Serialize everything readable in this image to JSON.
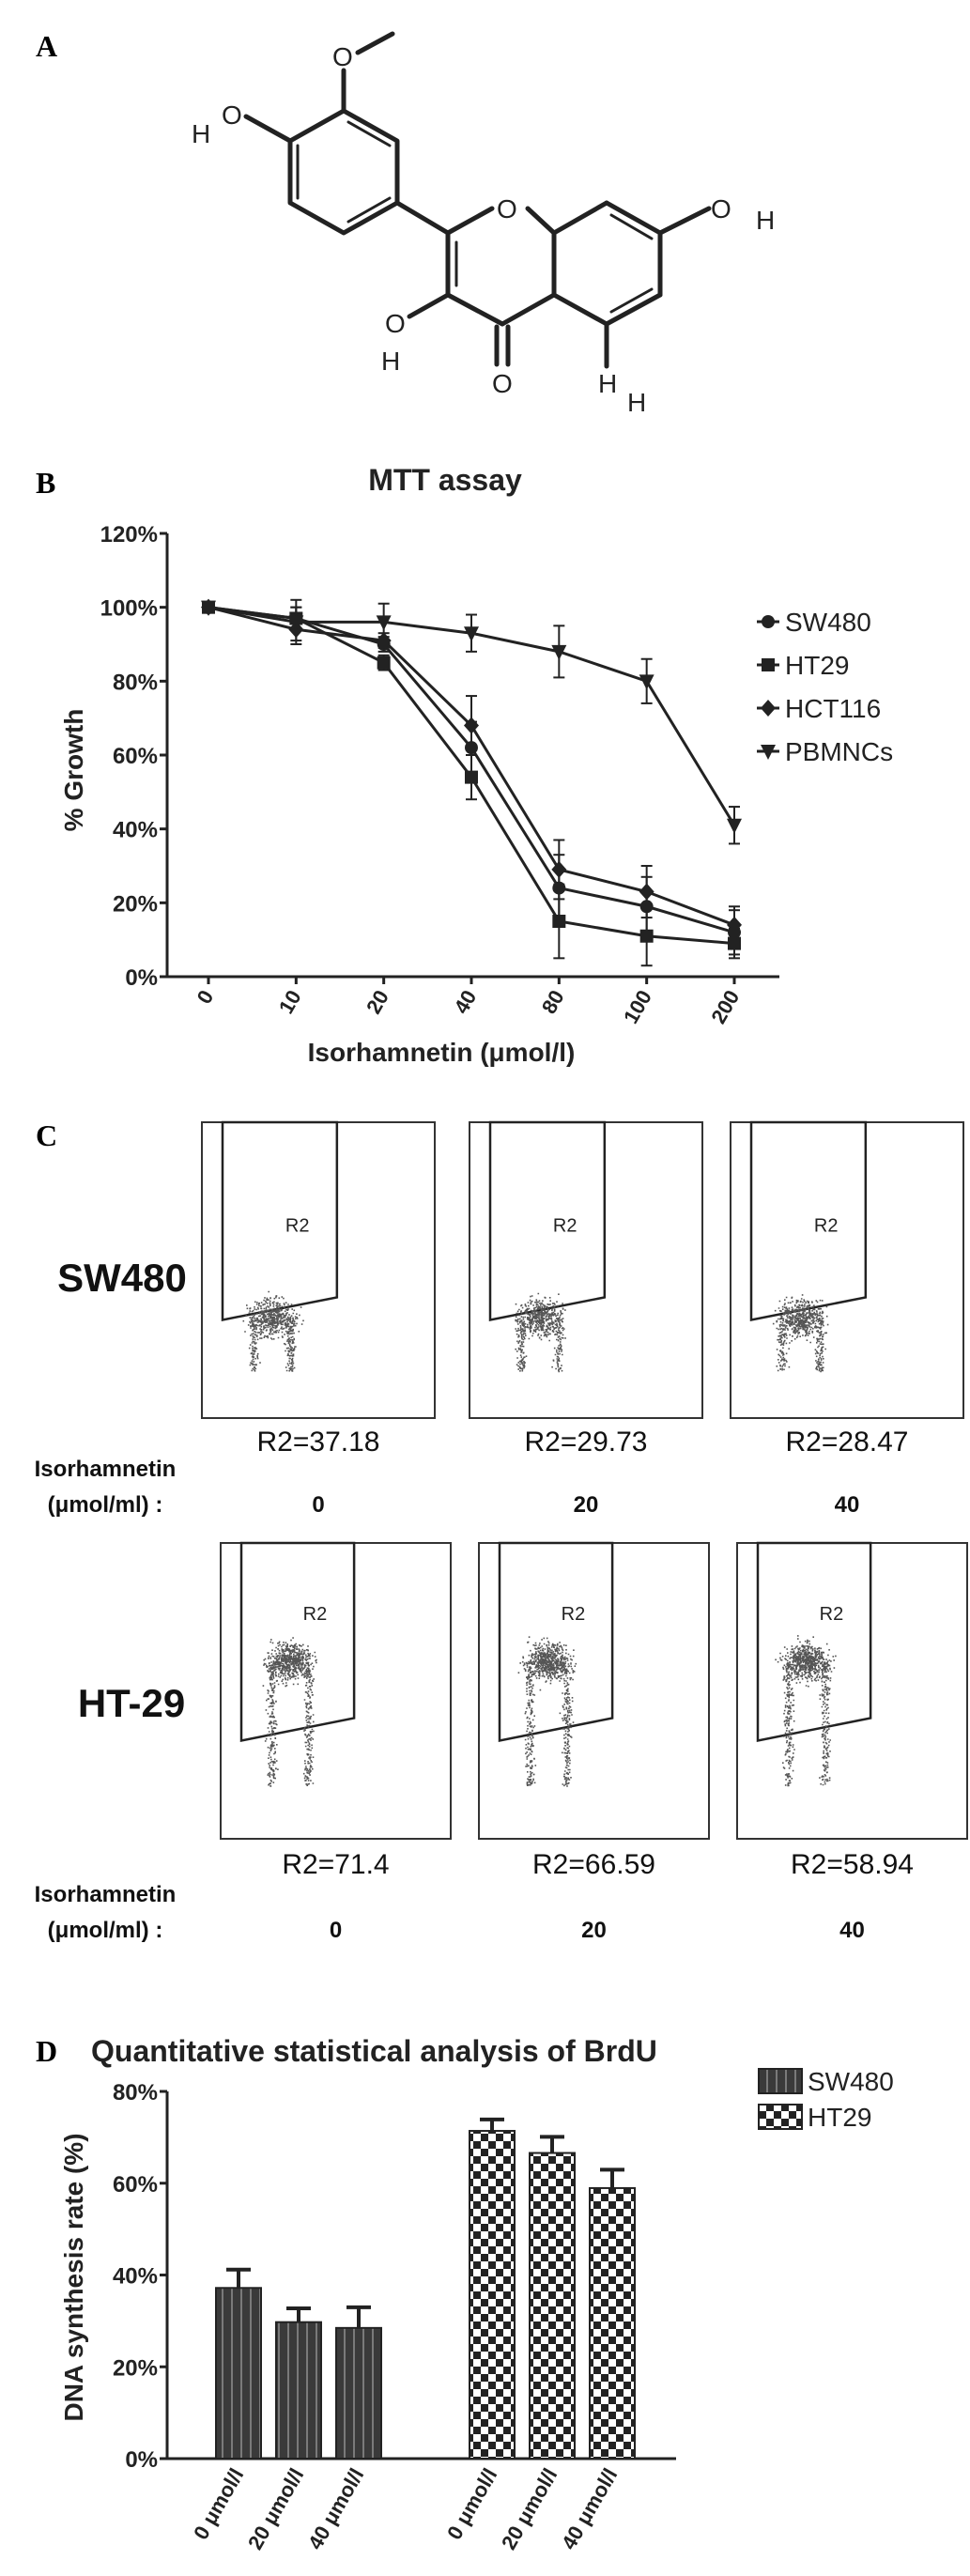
{
  "panels": {
    "a": {
      "letter": "A"
    },
    "b": {
      "letter": "B"
    },
    "c": {
      "letter": "C"
    },
    "d": {
      "letter": "D"
    }
  },
  "molecule": {
    "atoms": [
      "O",
      "H",
      "O",
      "O",
      "H",
      "O",
      "H",
      "O",
      "O",
      "H"
    ]
  },
  "chart_data": [
    {
      "type": "line",
      "panel": "B",
      "title": "MTT assay",
      "xlabel": "Isorhamnetin (μmol/l)",
      "ylabel": "% Growth",
      "categories": [
        "0",
        "10",
        "20",
        "40",
        "80",
        "100",
        "200"
      ],
      "y_ticks": [
        "0%",
        "20%",
        "40%",
        "60%",
        "80%",
        "100%",
        "120%"
      ],
      "ylim": [
        0,
        120
      ],
      "legend_position": "right",
      "series": [
        {
          "name": "SW480",
          "marker": "circle",
          "values": [
            100,
            97,
            90,
            62,
            24,
            19,
            12
          ],
          "errors": [
            1,
            3,
            2,
            7,
            9,
            8,
            6
          ]
        },
        {
          "name": "HT29",
          "marker": "square",
          "values": [
            100,
            97,
            85,
            54,
            15,
            11,
            9
          ],
          "errors": [
            1,
            3,
            2,
            6,
            10,
            8,
            4
          ]
        },
        {
          "name": "HCT116",
          "marker": "diamond",
          "values": [
            100,
            94,
            91,
            68,
            29,
            23,
            14
          ],
          "errors": [
            1,
            3,
            2,
            8,
            8,
            7,
            5
          ]
        },
        {
          "name": "PBMNCs",
          "marker": "triangle-down",
          "values": [
            100,
            96,
            96,
            93,
            88,
            80,
            41
          ],
          "errors": [
            1,
            6,
            5,
            5,
            7,
            6,
            5
          ]
        }
      ]
    },
    {
      "type": "bar",
      "panel": "D",
      "title": "Quantitative statistical analysis of BrdU",
      "ylabel": "DNA synthesis rate (%)",
      "xlabel": "",
      "categories": [
        "0 μmol/l",
        "20 μmol/l",
        "40 μmol/l"
      ],
      "y_ticks": [
        "0%",
        "20%",
        "40%",
        "60%",
        "80%"
      ],
      "ylim": [
        0,
        80
      ],
      "legend_position": "top-right",
      "series": [
        {
          "name": "SW480",
          "values": [
            37.18,
            29.73,
            28.47
          ],
          "errors": [
            4,
            3,
            4.5
          ]
        },
        {
          "name": "HT29",
          "values": [
            71.4,
            66.59,
            58.94
          ],
          "errors": [
            2.5,
            3.5,
            4
          ]
        }
      ]
    }
  ],
  "flow": {
    "gate_label": "R2",
    "axis_label_line1": "Isorhamnetin",
    "axis_label_line2": "(μmol/ml) :",
    "rows": [
      {
        "cell_line": "SW480",
        "plots": [
          {
            "r2_text": "R2=37.18",
            "concentration": "0"
          },
          {
            "r2_text": "R2=29.73",
            "concentration": "20"
          },
          {
            "r2_text": "R2=28.47",
            "concentration": "40"
          }
        ]
      },
      {
        "cell_line": "HT-29",
        "plots": [
          {
            "r2_text": "R2=71.4",
            "concentration": "0"
          },
          {
            "r2_text": "R2=66.59",
            "concentration": "20"
          },
          {
            "r2_text": "R2=58.94",
            "concentration": "40"
          }
        ]
      }
    ]
  }
}
